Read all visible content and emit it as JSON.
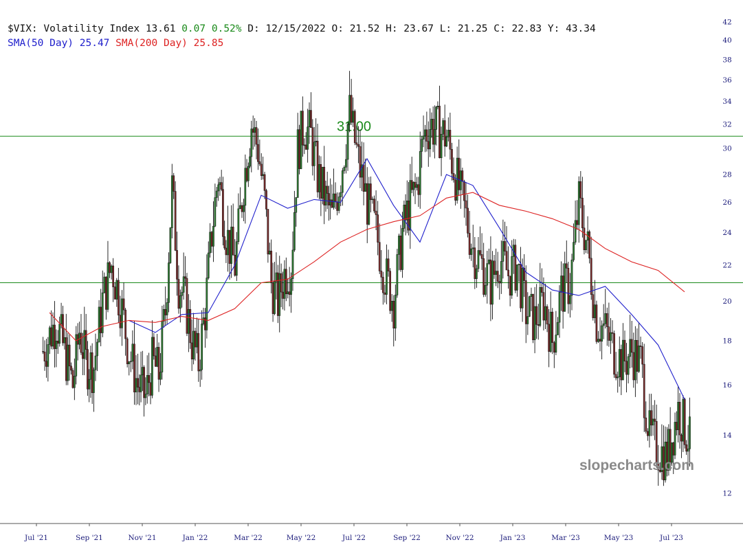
{
  "header": {
    "symbol": "$VIX:",
    "name": "Volatility Index",
    "last": "13.61",
    "change": "0.07",
    "change_pct": "0.52%",
    "date_label": "D:",
    "date": "12/15/2022",
    "open_label": "O:",
    "open": "21.52",
    "high_label": "H:",
    "high": "23.67",
    "low_label": "L:",
    "low": "21.25",
    "close_label": "C:",
    "close": "22.83",
    "y_label": "Y:",
    "y": "43.34",
    "sma50_label": "SMA(50 Day)",
    "sma50_value": "25.47",
    "sma200_label": "SMA(200 Day)",
    "sma200_value": "25.85"
  },
  "colors": {
    "up_candle": "#2e7d32",
    "down_candle": "#7a2a2a",
    "wick": "#111111",
    "sma50": "#2020cc",
    "sma200": "#dd2222",
    "hline": "#1a8a1a",
    "positive": "#1a8a1a",
    "axis_text": "#1a1a7a",
    "watermark": "#8a8a8a"
  },
  "watermark": "slopecharts.com",
  "chart_data": {
    "type": "candlestick",
    "y_scale": "log",
    "ylim": [
      11.6,
      42.5
    ],
    "y_ticks": [
      12,
      14,
      16,
      18,
      20,
      22,
      24,
      26,
      28,
      30,
      32,
      34,
      36,
      38,
      40,
      42
    ],
    "x_ticks": [
      "Jul '21",
      "Sep '21",
      "Nov '21",
      "Jan '22",
      "Mar '22",
      "May '22",
      "Jul '22",
      "Sep '22",
      "Nov '22",
      "Jan '23",
      "Mar '23",
      "May '23",
      "Jul '23"
    ],
    "horizontal_levels": [
      {
        "value": 31.0,
        "label": "31.00"
      },
      {
        "value": 21.0,
        "label": ""
      }
    ],
    "series": [
      {
        "name": "SMA(50 Day)",
        "points": [
          [
            "Oct '21",
            19.0
          ],
          [
            "Nov '21",
            18.4
          ],
          [
            "Dec '21",
            19.3
          ],
          [
            "Jan '22",
            19.4
          ],
          [
            "Feb '22",
            22.0
          ],
          [
            "Mar '22",
            26.5
          ],
          [
            "Apr '22",
            25.6
          ],
          [
            "May '22",
            26.2
          ],
          [
            "Jun '22",
            26.0
          ],
          [
            "Jul '22",
            29.2
          ],
          [
            "Aug '22",
            25.8
          ],
          [
            "Sep '22",
            23.4
          ],
          [
            "Oct '22",
            28.0
          ],
          [
            "Nov '22",
            27.2
          ],
          [
            "Dec '22",
            24.3
          ],
          [
            "Jan '23",
            21.6
          ],
          [
            "Feb '23",
            20.6
          ],
          [
            "Mar '23",
            20.3
          ],
          [
            "Apr '23",
            20.8
          ],
          [
            "May '23",
            19.3
          ],
          [
            "Jun '23",
            17.8
          ],
          [
            "Jul '23",
            15.4
          ]
        ]
      },
      {
        "name": "SMA(200 Day)",
        "points": [
          [
            "Jul '21",
            19.4
          ],
          [
            "Aug '21",
            18.0
          ],
          [
            "Sep '21",
            18.7
          ],
          [
            "Oct '21",
            19.0
          ],
          [
            "Nov '21",
            18.9
          ],
          [
            "Dec '21",
            19.2
          ],
          [
            "Jan '22",
            19.0
          ],
          [
            "Feb '22",
            19.6
          ],
          [
            "Mar '22",
            21.0
          ],
          [
            "Apr '22",
            21.2
          ],
          [
            "May '22",
            22.2
          ],
          [
            "Jun '22",
            23.4
          ],
          [
            "Jul '22",
            24.2
          ],
          [
            "Aug '22",
            24.7
          ],
          [
            "Sep '22",
            25.1
          ],
          [
            "Oct '22",
            26.3
          ],
          [
            "Nov '22",
            26.7
          ],
          [
            "Dec '22",
            25.8
          ],
          [
            "Jan '23",
            25.4
          ],
          [
            "Feb '23",
            24.9
          ],
          [
            "Mar '23",
            24.2
          ],
          [
            "Apr '23",
            23.0
          ],
          [
            "May '23",
            22.2
          ],
          [
            "Jun '23",
            21.7
          ],
          [
            "Jul '23",
            20.5
          ]
        ]
      }
    ],
    "closes": [
      [
        "Jul '21",
        17.5
      ],
      [
        "Jul '21",
        19.0
      ],
      [
        "Aug '21",
        17.2
      ],
      [
        "Aug '21",
        16.0
      ],
      [
        "Aug '21",
        18.5
      ],
      [
        "Aug '21",
        17.0
      ],
      [
        "Sep '21",
        16.8
      ],
      [
        "Sep '21",
        20.0
      ],
      [
        "Sep '21",
        22.0
      ],
      [
        "Oct '21",
        20.0
      ],
      [
        "Oct '21",
        17.5
      ],
      [
        "Oct '21",
        16.0
      ],
      [
        "Nov '21",
        15.5
      ],
      [
        "Nov '21",
        17.0
      ],
      [
        "Nov '21",
        16.5
      ],
      [
        "Nov '21",
        19.5
      ],
      [
        "Dec '21",
        27.0
      ],
      [
        "Dec '21",
        21.0
      ],
      [
        "Dec '21",
        20.0
      ],
      [
        "Dec '21",
        18.0
      ],
      [
        "Jan '22",
        17.0
      ],
      [
        "Jan '22",
        19.5
      ],
      [
        "Jan '22",
        24.0
      ],
      [
        "Jan '22",
        28.0
      ],
      [
        "Feb '22",
        24.0
      ],
      [
        "Feb '22",
        22.0
      ],
      [
        "Feb '22",
        27.5
      ],
      [
        "Mar '22",
        32.0
      ],
      [
        "Mar '22",
        30.0
      ],
      [
        "Mar '22",
        26.0
      ],
      [
        "Mar '22",
        21.0
      ],
      [
        "Apr '22",
        20.0
      ],
      [
        "Apr '22",
        21.5
      ],
      [
        "Apr '22",
        22.0
      ],
      [
        "Apr '22",
        30.0
      ],
      [
        "May '22",
        32.0
      ],
      [
        "May '22",
        31.0
      ],
      [
        "May '22",
        28.0
      ],
      [
        "May '22",
        26.5
      ],
      [
        "Jun '22",
        25.0
      ],
      [
        "Jun '22",
        28.0
      ],
      [
        "Jun '22",
        33.0
      ],
      [
        "Jul '22",
        29.0
      ],
      [
        "Jul '22",
        26.0
      ],
      [
        "Jul '22",
        24.0
      ],
      [
        "Aug '22",
        21.5
      ],
      [
        "Aug '22",
        20.0
      ],
      [
        "Aug '22",
        24.0
      ],
      [
        "Sep '22",
        26.0
      ],
      [
        "Sep '22",
        27.0
      ],
      [
        "Sep '22",
        31.0
      ],
      [
        "Sep '22",
        32.0
      ],
      [
        "Oct '22",
        31.5
      ],
      [
        "Oct '22",
        31.0
      ],
      [
        "Oct '22",
        28.0
      ],
      [
        "Nov '22",
        25.5
      ],
      [
        "Nov '22",
        23.0
      ],
      [
        "Nov '22",
        22.0
      ],
      [
        "Dec '22",
        21.0
      ],
      [
        "Dec '22",
        22.5
      ],
      [
        "Dec '22",
        21.5
      ],
      [
        "Jan '23",
        22.0
      ],
      [
        "Jan '23",
        19.5
      ],
      [
        "Jan '23",
        19.0
      ],
      [
        "Feb '23",
        20.0
      ],
      [
        "Feb '23",
        18.0
      ],
      [
        "Feb '23",
        20.5
      ],
      [
        "Mar '23",
        21.0
      ],
      [
        "Mar '23",
        26.0
      ],
      [
        "Mar '23",
        23.0
      ],
      [
        "Apr '23",
        19.0
      ],
      [
        "Apr '23",
        18.5
      ],
      [
        "Apr '23",
        17.5
      ],
      [
        "May '23",
        17.0
      ],
      [
        "May '23",
        17.5
      ],
      [
        "May '23",
        17.0
      ],
      [
        "Jun '23",
        14.0
      ],
      [
        "Jun '23",
        13.5
      ],
      [
        "Jun '23",
        13.2
      ],
      [
        "Jul '23",
        15.0
      ],
      [
        "Jul '23",
        13.6
      ]
    ]
  }
}
